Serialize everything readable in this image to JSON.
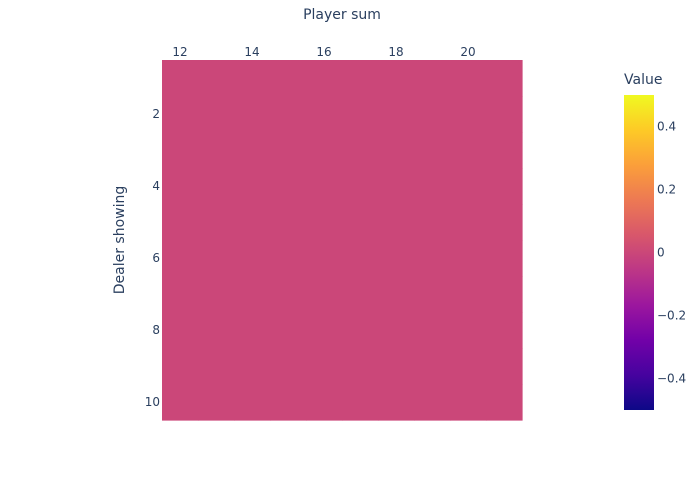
{
  "chart_data": {
    "type": "heatmap",
    "xlabel": "Player sum",
    "ylabel": "Dealer showing",
    "x": [
      12,
      13,
      14,
      15,
      16,
      17,
      18,
      19,
      20,
      21
    ],
    "y": [
      1,
      2,
      3,
      4,
      5,
      6,
      7,
      8,
      9,
      10
    ],
    "z": [
      [
        0,
        0,
        0,
        0,
        0,
        0,
        0,
        0,
        0,
        0
      ],
      [
        0,
        0,
        0,
        0,
        0,
        0,
        0,
        0,
        0,
        0
      ],
      [
        0,
        0,
        0,
        0,
        0,
        0,
        0,
        0,
        0,
        0
      ],
      [
        0,
        0,
        0,
        0,
        0,
        0,
        0,
        0,
        0,
        0
      ],
      [
        0,
        0,
        0,
        0,
        0,
        0,
        0,
        0,
        0,
        0
      ],
      [
        0,
        0,
        0,
        0,
        0,
        0,
        0,
        0,
        0,
        0
      ],
      [
        0,
        0,
        0,
        0,
        0,
        0,
        0,
        0,
        0,
        0
      ],
      [
        0,
        0,
        0,
        0,
        0,
        0,
        0,
        0,
        0,
        0
      ],
      [
        0,
        0,
        0,
        0,
        0,
        0,
        0,
        0,
        0,
        0
      ],
      [
        0,
        0,
        0,
        0,
        0,
        0,
        0,
        0,
        0,
        0
      ]
    ],
    "x_ticks": [
      12,
      14,
      16,
      18,
      20
    ],
    "y_ticks": [
      2,
      4,
      6,
      8,
      10
    ],
    "x_axis_side": "top",
    "y_axis_reversed": true,
    "colorbar": {
      "title": "Value",
      "range": [
        -0.5,
        0.5
      ],
      "ticks": [
        0.4,
        0.2,
        0,
        -0.2,
        -0.4
      ],
      "tick_labels": [
        "0.4",
        "0.2",
        "0",
        "−0.2",
        "−0.4"
      ],
      "colorscale": [
        "#0d0887",
        "#46039f",
        "#7201a8",
        "#9c179e",
        "#bd3786",
        "#d8576b",
        "#ed7953",
        "#fb9f3a",
        "#fdca26",
        "#f0f921"
      ]
    },
    "grid": false,
    "legend": "colorbar-right"
  }
}
